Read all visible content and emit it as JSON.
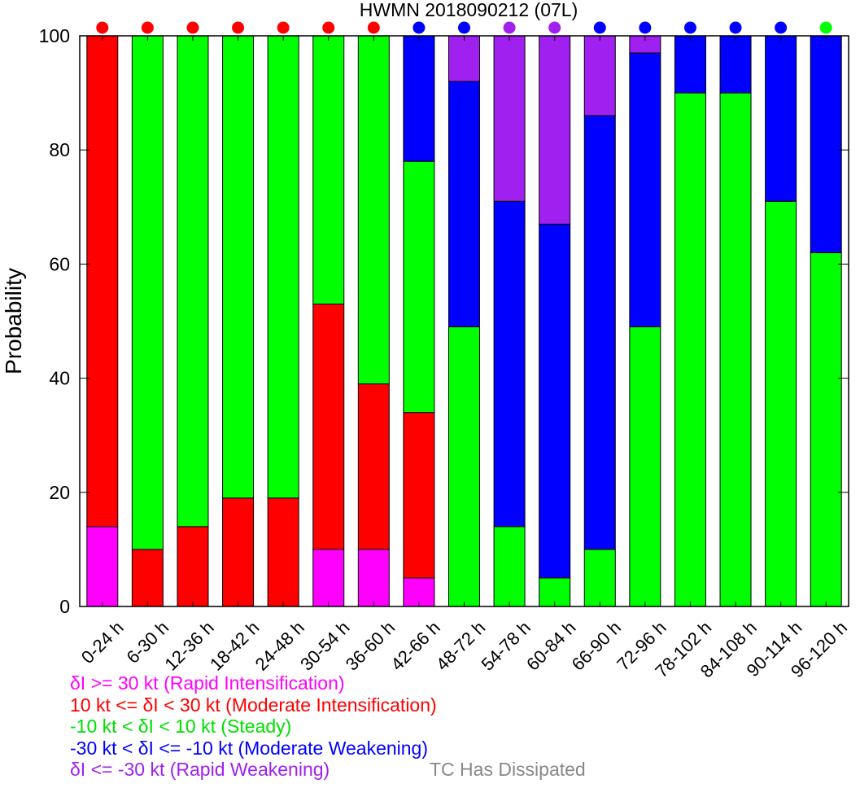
{
  "chart_data": {
    "type": "bar",
    "stacked": true,
    "title": "HWMN 2018090212  (07L)",
    "ylabel": "Probability",
    "ylim": [
      0,
      100
    ],
    "yticks": [
      0,
      20,
      40,
      60,
      80,
      100
    ],
    "categories": [
      "0-24 h",
      "6-30 h",
      "12-36 h",
      "18-42 h",
      "24-48 h",
      "30-54 h",
      "36-60 h",
      "42-66 h",
      "48-72 h",
      "54-78 h",
      "60-84 h",
      "66-90 h",
      "72-96 h",
      "78-102 h",
      "84-108 h",
      "90-114 h",
      "96-120 h"
    ],
    "series": [
      {
        "key": "ri",
        "color": "#ff00ff",
        "values": [
          14,
          0,
          0,
          0,
          0,
          10,
          10,
          5,
          0,
          0,
          0,
          0,
          0,
          0,
          0,
          0,
          0
        ]
      },
      {
        "key": "mi",
        "color": "#ff0000",
        "values": [
          86,
          10,
          14,
          19,
          19,
          43,
          29,
          29,
          0,
          0,
          0,
          0,
          0,
          0,
          0,
          0,
          0
        ]
      },
      {
        "key": "st",
        "color": "#00ff00",
        "values": [
          0,
          90,
          86,
          81,
          81,
          47,
          61,
          44,
          49,
          14,
          5,
          10,
          49,
          90,
          90,
          71,
          62
        ]
      },
      {
        "key": "mw",
        "color": "#0000ff",
        "values": [
          0,
          0,
          0,
          0,
          0,
          0,
          0,
          22,
          43,
          57,
          62,
          76,
          48,
          10,
          10,
          29,
          38
        ]
      },
      {
        "key": "rw",
        "color": "#a020f0",
        "values": [
          0,
          0,
          0,
          0,
          0,
          0,
          0,
          0,
          8,
          29,
          33,
          14,
          3,
          0,
          0,
          0,
          0
        ]
      }
    ],
    "dot_colors": [
      "#ff0000",
      "#ff0000",
      "#ff0000",
      "#ff0000",
      "#ff0000",
      "#ff0000",
      "#ff0000",
      "#0000ff",
      "#0000ff",
      "#a020f0",
      "#a020f0",
      "#0000ff",
      "#0000ff",
      "#0000ff",
      "#0000ff",
      "#0000ff",
      "#00ff00"
    ],
    "grid": false
  },
  "legend": [
    {
      "text": "δI >= 30 kt (Rapid Intensification)",
      "color": "#ff00ff"
    },
    {
      "text": "10 kt <= δI < 30 kt (Moderate Intensification)",
      "color": "#ff0000"
    },
    {
      "text": "-10 kt < δI < 10 kt (Steady)",
      "color": "#00e000"
    },
    {
      "text": "-30 kt < δI <= -10 kt (Moderate Weakening)",
      "color": "#0000ff"
    },
    {
      "text": "δI <= -30 kt (Rapid Weakening)",
      "color": "#a020f0"
    }
  ],
  "dissipated_label": "TC Has Dissipated",
  "dissipated_color": "#888888"
}
